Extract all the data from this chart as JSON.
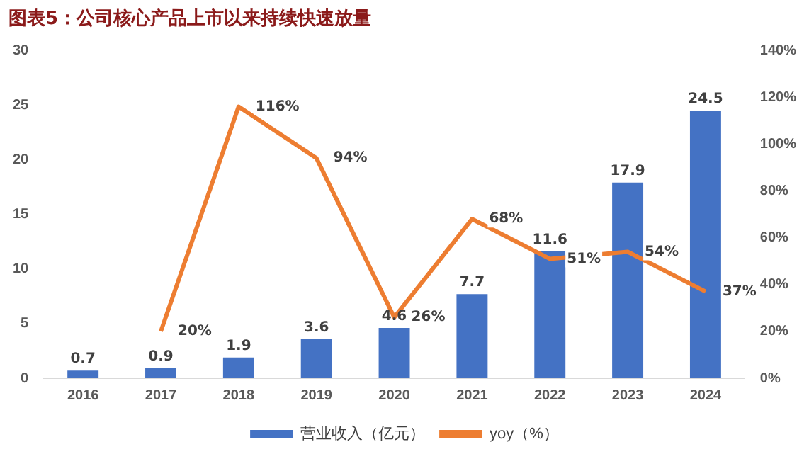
{
  "chart_data": {
    "type": "bar",
    "title": "图表5：公司核心产品上市以来持续快速放量",
    "categories": [
      "2016",
      "2017",
      "2018",
      "2019",
      "2020",
      "2021",
      "2022",
      "2023",
      "2024"
    ],
    "series": [
      {
        "name": "营业收入（亿元）",
        "color": "#4472c4",
        "values": [
          0.7,
          0.9,
          1.9,
          3.6,
          4.6,
          7.7,
          11.6,
          17.9,
          24.5
        ],
        "value_labels": [
          "0.7",
          "0.9",
          "1.9",
          "3.6",
          "4.6",
          "7.7",
          "11.6",
          "17.9",
          "24.5"
        ]
      },
      {
        "name": "yoy（%）",
        "type": "line",
        "axis": "y2",
        "color": "#ed7d31",
        "values": [
          null,
          20,
          116,
          94,
          26,
          68,
          51,
          54,
          37
        ],
        "value_labels": [
          null,
          "20%",
          "116%",
          "94%",
          "26%",
          "68%",
          "51%",
          "54%",
          "37%"
        ]
      }
    ],
    "ylim": [
      0,
      30
    ],
    "yticks": [
      0,
      5,
      10,
      15,
      20,
      25,
      30
    ],
    "y2lim": [
      0,
      140
    ],
    "y2ticks": [
      {
        "value": 0,
        "label": "0%"
      },
      {
        "value": 20,
        "label": "20%"
      },
      {
        "value": 40,
        "label": "40%"
      },
      {
        "value": 60,
        "label": "60%"
      },
      {
        "value": 80,
        "label": "80%"
      },
      {
        "value": 100,
        "label": "100%"
      },
      {
        "value": 120,
        "label": "120%"
      },
      {
        "value": 140,
        "label": "140%"
      }
    ],
    "grid": false,
    "legend": "bottom",
    "marker": "none",
    "line_style": "solid"
  }
}
